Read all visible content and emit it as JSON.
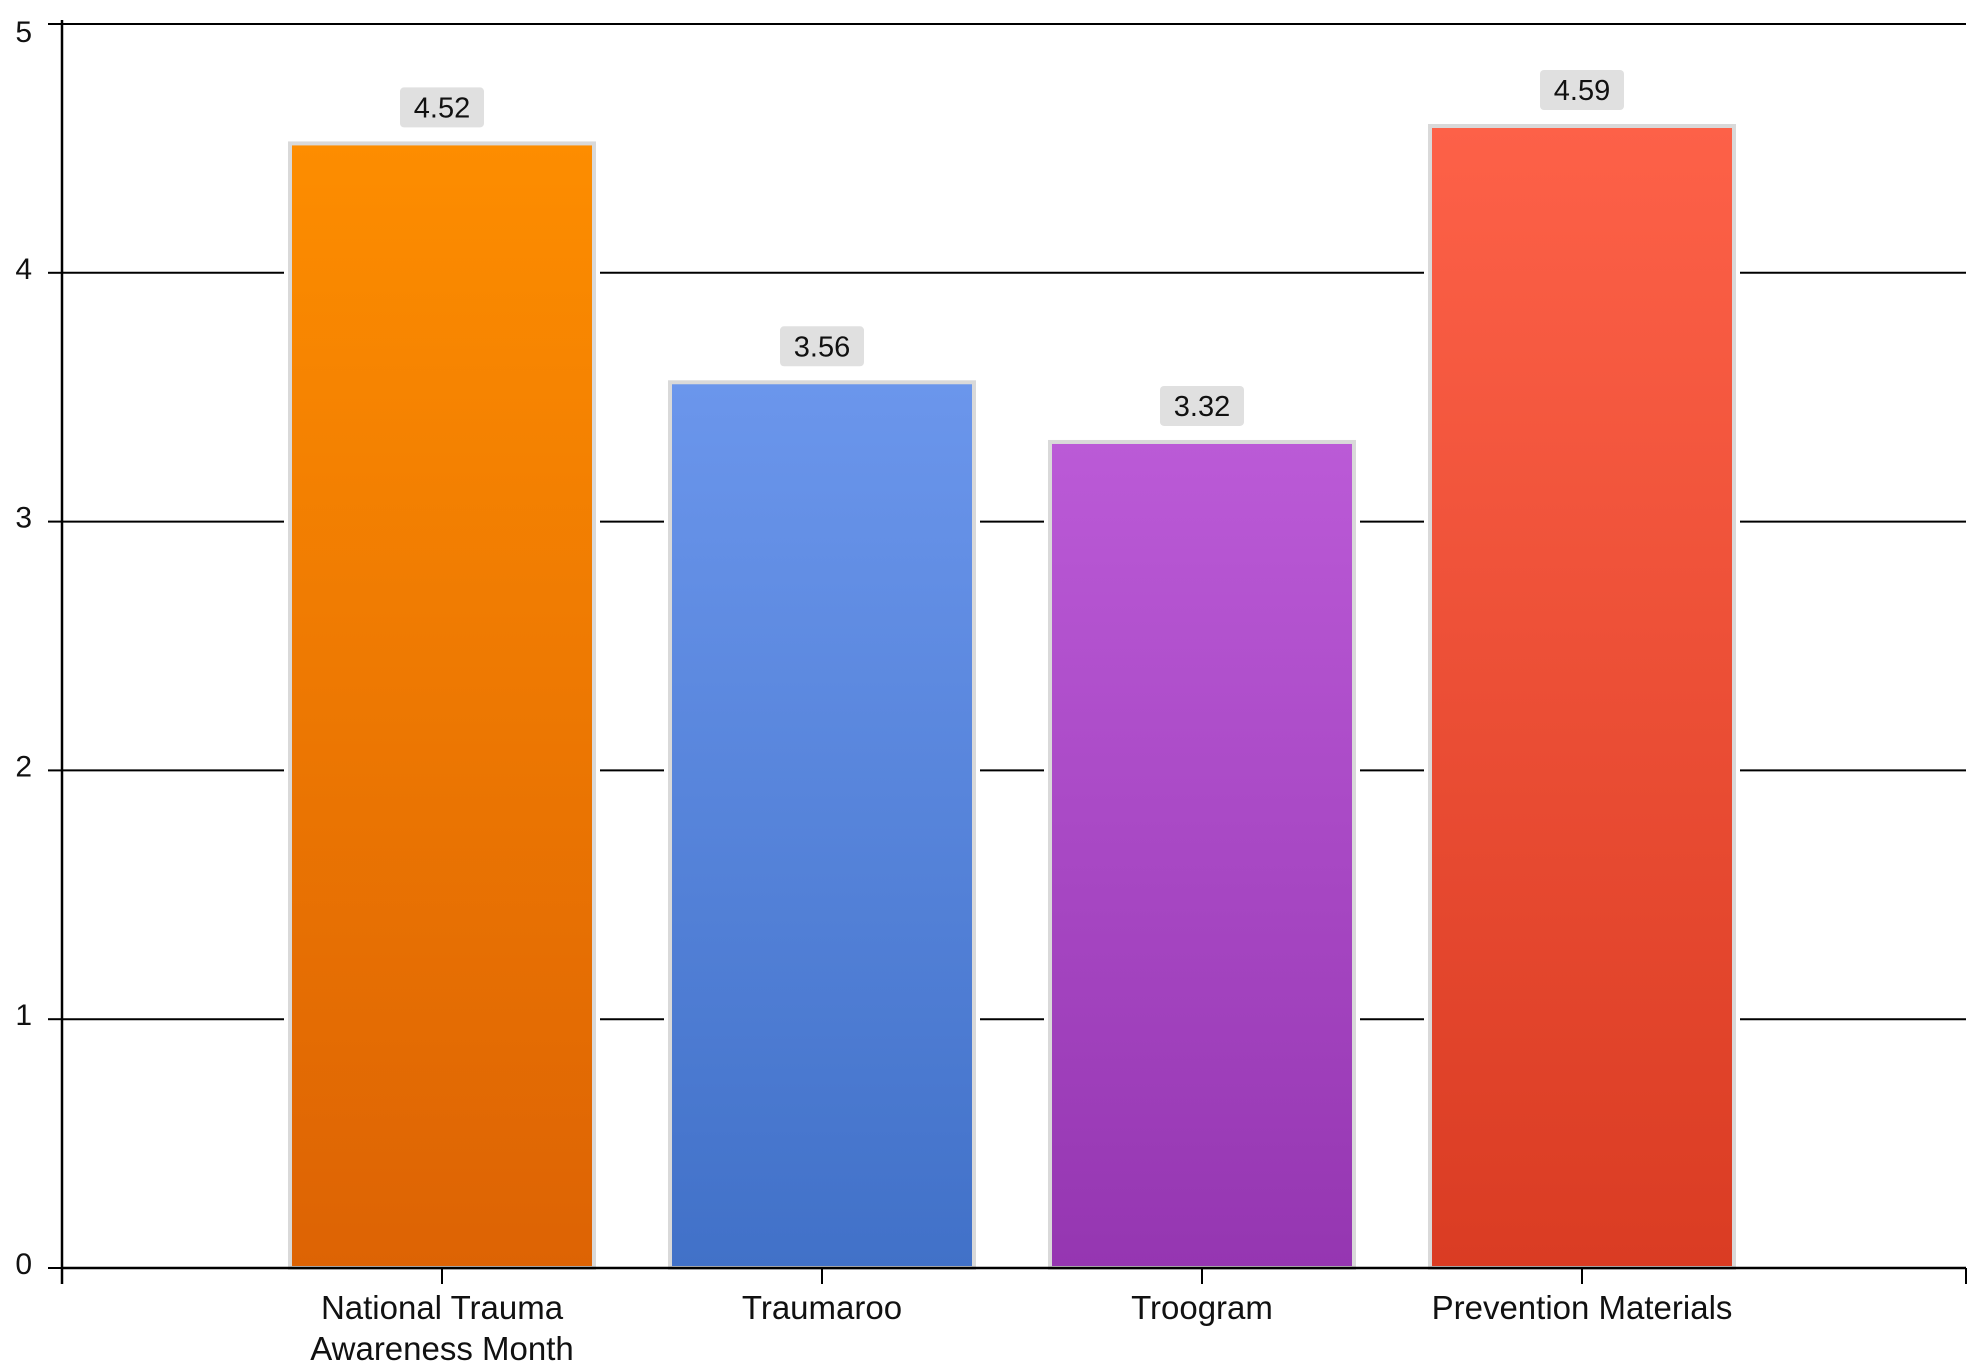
{
  "chart_data": {
    "type": "bar",
    "title": "",
    "xlabel": "",
    "ylabel": "",
    "ylim": [
      0,
      5
    ],
    "yticks": [
      0,
      1,
      2,
      3,
      4,
      5
    ],
    "grid": true,
    "legend": "none",
    "categories": [
      "National Trauma Awareness Month",
      "Traumaroo",
      "Troogram",
      "Prevention Materials"
    ],
    "category_lines": [
      [
        "National Trauma",
        "Awareness Month"
      ],
      [
        "Traumaroo"
      ],
      [
        "Troogram"
      ],
      [
        "Prevention Materials"
      ]
    ],
    "values": [
      4.52,
      3.56,
      3.32,
      4.59
    ],
    "data_labels": [
      "4.52",
      "3.56",
      "3.32",
      "4.59"
    ],
    "colors": [
      {
        "top": "#fd8d00",
        "bottom": "#dd6304"
      },
      {
        "top": "#6b96ec",
        "bottom": "#4171c8"
      },
      {
        "top": "#bb5ad7",
        "bottom": "#9536b1"
      },
      {
        "top": "#fd6148",
        "bottom": "#da3c23"
      }
    ]
  }
}
